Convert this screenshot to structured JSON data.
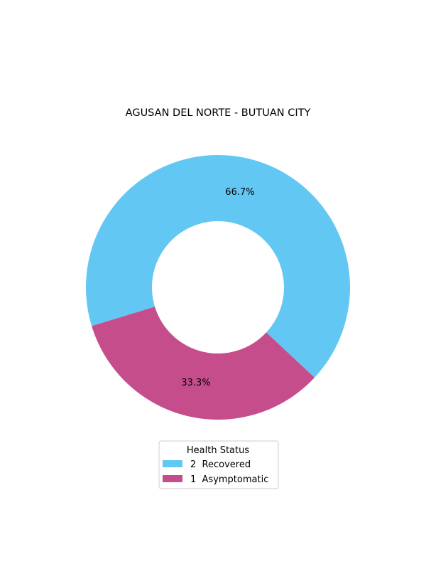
{
  "chart_data": {
    "type": "pie",
    "donut": true,
    "title": "AGUSAN DEL NORTE - BUTUAN CITY",
    "slices": [
      {
        "label": "2  Recovered",
        "value": 2,
        "percent_label": "66.7%",
        "color": "#63c7f3"
      },
      {
        "label": "1  Asymptomatic",
        "value": 1,
        "percent_label": "33.3%",
        "color": "#c64d8c"
      }
    ],
    "legend": {
      "title": "Health Status",
      "placement": "bottom-center"
    }
  }
}
